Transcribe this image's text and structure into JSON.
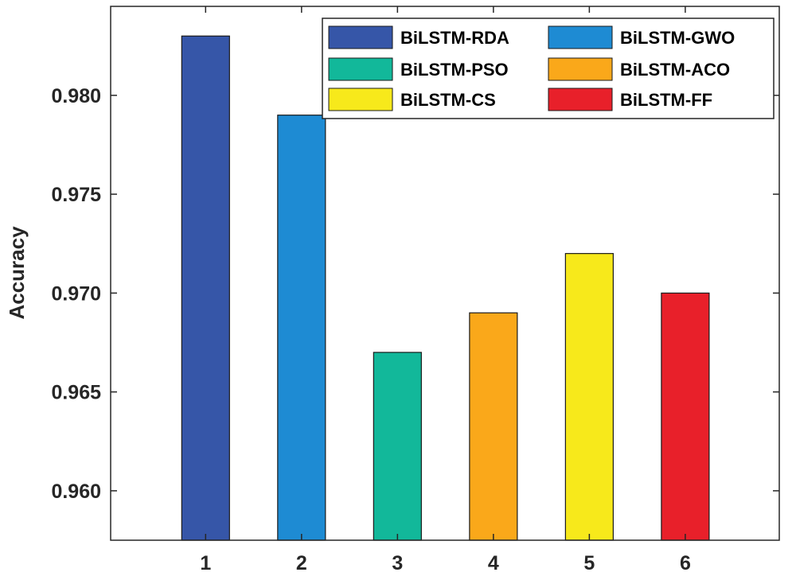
{
  "chart_data": {
    "type": "bar",
    "categories": [
      "1",
      "2",
      "3",
      "4",
      "5",
      "6"
    ],
    "series": [
      {
        "name": "BiLSTM-RDA",
        "category": "1",
        "value": 0.983,
        "color": "#3656a8"
      },
      {
        "name": "BiLSTM-GWO",
        "category": "2",
        "value": 0.979,
        "color": "#1e8bd3"
      },
      {
        "name": "BiLSTM-PSO",
        "category": "3",
        "value": 0.967,
        "color": "#12b89a"
      },
      {
        "name": "BiLSTM-ACO",
        "category": "4",
        "value": 0.969,
        "color": "#faa81a"
      },
      {
        "name": "BiLSTM-CS",
        "category": "5",
        "value": 0.972,
        "color": "#f7e91b"
      },
      {
        "name": "BiLSTM-FF",
        "category": "6",
        "value": 0.97,
        "color": "#e8202a"
      }
    ],
    "ylabel": "Accuracy",
    "xlabel": "",
    "ylim": [
      0.9575,
      0.9845
    ],
    "yticks": [
      "0.960",
      "0.965",
      "0.970",
      "0.975",
      "0.980"
    ],
    "ytick_values": [
      0.96,
      0.965,
      0.97,
      0.975,
      0.98
    ],
    "legend_position": "top-right",
    "legend_columns": 2,
    "grid": false
  }
}
